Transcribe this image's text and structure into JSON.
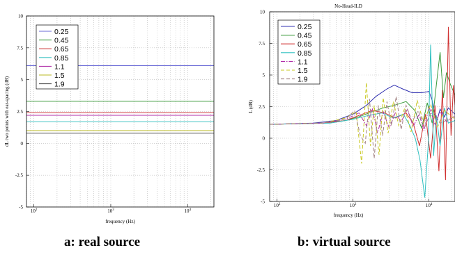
{
  "captions": {
    "a": "a: real source",
    "b": "b: virtual source"
  },
  "chart_data": [
    {
      "type": "line",
      "title": "",
      "xlabel": "frequency (Hz)",
      "ylabel": "dL two points with ear-spacing (dB)",
      "xscale": "log",
      "xlim": [
        80,
        22000
      ],
      "ylim": [
        -5,
        10
      ],
      "xtick_labels": [
        {
          "base": "10",
          "exp": "2"
        },
        {
          "base": "10",
          "exp": "3"
        },
        {
          "base": "10",
          "exp": "4"
        }
      ],
      "ytick_labels": [
        "10",
        "7.5",
        "5",
        "2.5",
        "0",
        "-2.5",
        "-5"
      ],
      "grid": true,
      "legend_placement": "top-left",
      "series": [
        {
          "name": "0.25",
          "color": "#6b6bd6",
          "style": "solid",
          "value": 6.1
        },
        {
          "name": "0.45",
          "color": "#3a9a3a",
          "style": "solid",
          "value": 3.3
        },
        {
          "name": "0.65",
          "color": "#d04040",
          "style": "solid",
          "value": 2.4
        },
        {
          "name": "0.85",
          "color": "#40c4c4",
          "style": "solid",
          "value": 1.7
        },
        {
          "name": "1.1",
          "color": "#b02fa8",
          "style": "solid",
          "value": 2.2
        },
        {
          "name": "1.5",
          "color": "#b8b820",
          "style": "solid",
          "value": 1.0
        },
        {
          "name": "1.9",
          "color": "#555555",
          "style": "solid",
          "value": 0.8
        }
      ]
    },
    {
      "type": "line",
      "title": "No-Head-ILD",
      "xlabel": "frequency (Hz)",
      "ylabel": "L (dB)",
      "xscale": "log",
      "xlim": [
        80,
        22000
      ],
      "ylim": [
        -5,
        10
      ],
      "xtick_labels": [
        {
          "base": "10",
          "exp": "2"
        },
        {
          "base": "10",
          "exp": "3"
        },
        {
          "base": "10",
          "exp": "4"
        }
      ],
      "ytick_labels": [
        "10",
        "7.5",
        "5",
        "2.5",
        "0",
        "-2.5",
        "-5"
      ],
      "grid": true,
      "legend_placement": "top-left",
      "series": [
        {
          "name": "0.25",
          "color": "#3030b0",
          "style": "solid",
          "x": [
            80,
            300,
            600,
            1000,
            1500,
            2000,
            2800,
            3500,
            4500,
            6000,
            8000,
            10000,
            11000,
            12500,
            14000,
            16000,
            18000,
            22000
          ],
          "y": [
            1.1,
            1.2,
            1.4,
            1.9,
            2.6,
            3.3,
            3.9,
            4.2,
            3.9,
            3.6,
            3.6,
            3.7,
            3.0,
            1.2,
            2.3,
            1.7,
            2.4,
            1.9
          ]
        },
        {
          "name": "0.45",
          "color": "#3a9a3a",
          "style": "solid",
          "x": [
            80,
            400,
            800,
            1200,
            1800,
            2500,
            3500,
            5000,
            6500,
            8000,
            9500,
            11000,
            12500,
            14000,
            15500,
            17000,
            19000,
            22000
          ],
          "y": [
            1.1,
            1.2,
            1.4,
            1.7,
            2.1,
            2.4,
            2.6,
            2.9,
            2.2,
            0.8,
            2.8,
            1.2,
            4.2,
            6.8,
            3.2,
            5.2,
            4.3,
            3.4
          ]
        },
        {
          "name": "0.65",
          "color": "#d03030",
          "style": "solid",
          "x": [
            80,
            400,
            800,
            1200,
            1800,
            2600,
            3600,
            5000,
            6200,
            7500,
            9000,
            10500,
            12000,
            13500,
            15000,
            16500,
            18000,
            19500,
            21000,
            22000
          ],
          "y": [
            1.1,
            1.2,
            1.4,
            1.8,
            2.2,
            2.0,
            1.6,
            2.0,
            1.2,
            -0.6,
            1.9,
            -1.6,
            2.6,
            -2.6,
            3.8,
            -3.3,
            8.8,
            0.2,
            4.2,
            2.6
          ]
        },
        {
          "name": "0.85",
          "color": "#30c0c0",
          "style": "solid",
          "x": [
            80,
            500,
            1000,
            1600,
            2400,
            3400,
            4600,
            5600,
            6600,
            7600,
            8800,
            9800,
            10500,
            11500,
            12500,
            14000,
            16000,
            18000,
            22000
          ],
          "y": [
            1.1,
            1.2,
            1.5,
            1.8,
            2.0,
            1.6,
            1.9,
            1.0,
            0.0,
            -1.7,
            -4.7,
            -0.4,
            7.4,
            -1.4,
            1.8,
            -0.6,
            2.4,
            1.2,
            1.4
          ]
        },
        {
          "name": "1.1",
          "color": "#b02fa8",
          "style": "dashdot",
          "x": [
            80,
            400,
            800,
            1200,
            1500,
            1800,
            2100,
            2500,
            3000,
            3600,
            4300,
            5200,
            6200,
            7400,
            8600,
            10000,
            12000,
            14000,
            17000,
            22000
          ],
          "y": [
            1.1,
            1.2,
            1.5,
            2.0,
            1.0,
            2.3,
            0.4,
            2.1,
            0.8,
            2.0,
            1.3,
            2.3,
            0.9,
            1.9,
            0.6,
            2.5,
            1.1,
            2.1,
            1.3,
            1.8
          ]
        },
        {
          "name": "1.5",
          "color": "#c8c820",
          "style": "dashed",
          "x": [
            80,
            400,
            800,
            1100,
            1300,
            1500,
            1700,
            1900,
            2200,
            2500,
            2900,
            3400,
            4000,
            4800,
            5800,
            7000,
            8500,
            10500,
            13000,
            16000,
            22000
          ],
          "y": [
            1.1,
            1.2,
            1.6,
            2.1,
            -2.0,
            4.4,
            -0.6,
            2.6,
            -1.3,
            3.2,
            0.4,
            2.9,
            1.0,
            2.4,
            0.5,
            3.0,
            1.2,
            2.7,
            0.9,
            2.2,
            1.5
          ]
        },
        {
          "name": "1.9",
          "color": "#a08080",
          "style": "dashed",
          "x": [
            80,
            400,
            800,
            1050,
            1250,
            1450,
            1650,
            1900,
            2150,
            2450,
            2800,
            3200,
            3700,
            4300,
            5000,
            6000,
            7200,
            8800,
            11000,
            14000,
            22000
          ],
          "y": [
            1.1,
            1.2,
            1.5,
            2.2,
            0.2,
            -0.4,
            3.1,
            -1.6,
            2.6,
            0.2,
            2.9,
            1.0,
            3.3,
            0.7,
            2.6,
            1.3,
            2.2,
            0.9,
            2.3,
            1.2,
            1.7
          ]
        }
      ]
    }
  ]
}
